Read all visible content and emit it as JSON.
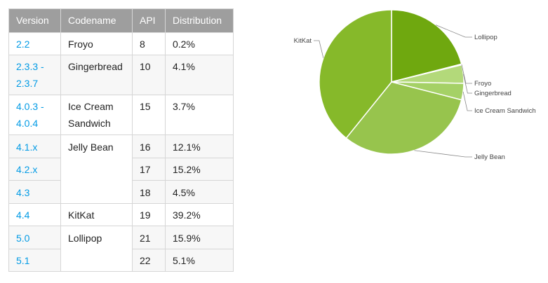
{
  "table": {
    "headers": [
      "Version",
      "Codename",
      "API",
      "Distribution"
    ],
    "rows": [
      {
        "version": "2.2",
        "codename": "Froyo",
        "api": "8",
        "distribution": "0.2%"
      },
      {
        "version": "2.3.3 - 2.3.7",
        "codename": "Gingerbread",
        "api": "10",
        "distribution": "4.1%"
      },
      {
        "version": "4.0.3 - 4.0.4",
        "codename": "Ice Cream Sandwich",
        "api": "15",
        "distribution": "3.7%"
      },
      {
        "version": "4.1.x",
        "codename": "Jelly Bean",
        "api": "16",
        "distribution": "12.1%"
      },
      {
        "version": "4.2.x",
        "codename": "",
        "api": "17",
        "distribution": "15.2%"
      },
      {
        "version": "4.3",
        "codename": "",
        "api": "18",
        "distribution": "4.5%"
      },
      {
        "version": "4.4",
        "codename": "KitKat",
        "api": "19",
        "distribution": "39.2%"
      },
      {
        "version": "5.0",
        "codename": "Lollipop",
        "api": "21",
        "distribution": "15.9%"
      },
      {
        "version": "5.1",
        "codename": "",
        "api": "22",
        "distribution": "5.1%"
      }
    ]
  },
  "chart_data": {
    "type": "pie",
    "categories": [
      "Lollipop",
      "Froyo",
      "Gingerbread",
      "Ice Cream Sandwich",
      "Jelly Bean",
      "KitKat"
    ],
    "values": [
      21.0,
      0.2,
      4.1,
      3.7,
      31.8,
      39.2
    ],
    "colors": [
      "#6fa80f",
      "#c5e39c",
      "#b3d97a",
      "#a5d166",
      "#97c44d",
      "#86b92a"
    ],
    "title": "",
    "legend": "none",
    "labels": "outside-with-leader-lines"
  },
  "colors": {
    "header_bg": "#9e9e9e",
    "link": "#039be5",
    "border": "#d6d6d6"
  }
}
